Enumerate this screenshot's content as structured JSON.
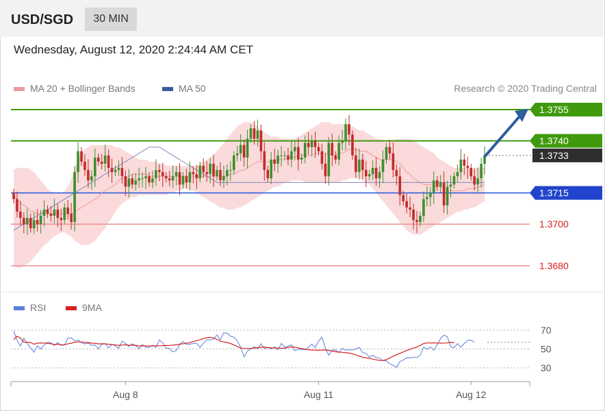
{
  "header": {
    "symbol": "USD/SGD",
    "timeframe": "30 MIN",
    "datetime": "Wednesday, August 12, 2020 2:24:44 AM CET"
  },
  "legend": {
    "bb_label": "MA 20 + Bollinger Bands",
    "ma50_label": "MA 50",
    "credit": "Research © 2020 Trading Central"
  },
  "rsi_legend": {
    "rsi_label": "RSI",
    "ma_label": "9MA"
  },
  "colors": {
    "bullish": "#3d8f2e",
    "bearish": "#c32b2b",
    "bollinger_fill": "#f9d4d4",
    "ma20": "#ef9a9a",
    "ma50": "#7d88c2",
    "resistance": "#3f9a0e",
    "support": "#2255dd",
    "support_minor": "#ef9090",
    "arrow": "#2c5fa0",
    "rsi": "#5a7fd6",
    "rsi_ma": "#d62020"
  },
  "chart_data": [
    {
      "type": "candlestick",
      "instrument": "USD/SGD",
      "timeframe": "30 MIN",
      "ylim": [
        1.3663,
        1.377
      ],
      "x_ticks": [
        {
          "label": "Aug 8",
          "index": 33
        },
        {
          "label": "Aug 11",
          "index": 90
        },
        {
          "label": "Aug 12",
          "index": 135
        }
      ],
      "levels": [
        {
          "value": 1.3755,
          "label": "1.3755",
          "kind": "resistance"
        },
        {
          "value": 1.374,
          "label": "1.3740",
          "kind": "resistance"
        },
        {
          "value": 1.3733,
          "label": "1.3733",
          "kind": "last_price"
        },
        {
          "value": 1.3715,
          "label": "1.3715",
          "kind": "pivot"
        },
        {
          "value": 1.37,
          "label": "1.3700",
          "kind": "support"
        },
        {
          "value": 1.368,
          "label": "1.3680",
          "kind": "support"
        }
      ],
      "close": [
        1.3712,
        1.3706,
        1.3703,
        1.37,
        1.3703,
        1.3698,
        1.3702,
        1.37,
        1.3704,
        1.3707,
        1.3705,
        1.3704,
        1.3707,
        1.3703,
        1.3702,
        1.3708,
        1.3705,
        1.3701,
        1.3725,
        1.3735,
        1.373,
        1.3726,
        1.3721,
        1.3723,
        1.3732,
        1.373,
        1.3729,
        1.3733,
        1.3727,
        1.3725,
        1.3726,
        1.3727,
        1.3723,
        1.3718,
        1.3722,
        1.3719,
        1.3721,
        1.3722,
        1.3722,
        1.3723,
        1.372,
        1.3722,
        1.3726,
        1.3725,
        1.3723,
        1.3722,
        1.3721,
        1.3723,
        1.3725,
        1.3719,
        1.3723,
        1.372,
        1.3725,
        1.3724,
        1.3722,
        1.3728,
        1.3725,
        1.3724,
        1.3729,
        1.3723,
        1.3726,
        1.3721,
        1.3723,
        1.3726,
        1.3726,
        1.3733,
        1.3734,
        1.3738,
        1.3732,
        1.3741,
        1.3746,
        1.3741,
        1.3745,
        1.3735,
        1.3726,
        1.3722,
        1.3731,
        1.3729,
        1.3733,
        1.3733,
        1.3733,
        1.3731,
        1.3735,
        1.3737,
        1.3731,
        1.3732,
        1.3739,
        1.3737,
        1.374,
        1.3737,
        1.3735,
        1.3729,
        1.3723,
        1.3739,
        1.3733,
        1.3731,
        1.3739,
        1.374,
        1.3748,
        1.3743,
        1.3733,
        1.3725,
        1.3731,
        1.3726,
        1.3723,
        1.3724,
        1.3727,
        1.3722,
        1.3725,
        1.3731,
        1.3737,
        1.3734,
        1.3726,
        1.3723,
        1.3714,
        1.3711,
        1.3708,
        1.3707,
        1.3702,
        1.3701,
        1.3704,
        1.3712,
        1.3713,
        1.3715,
        1.3721,
        1.3718,
        1.372,
        1.3709,
        1.3718,
        1.3719,
        1.3723,
        1.3725,
        1.3731,
        1.3728,
        1.3727,
        1.3723,
        1.3719,
        1.3722,
        1.3729,
        1.3733
      ],
      "ma20": [
        1.3714,
        1.3712,
        1.371,
        1.3709,
        1.3708,
        1.3706,
        1.3706,
        1.3705,
        1.3705,
        1.3705,
        1.3705,
        1.3705,
        1.3705,
        1.3705,
        1.3705,
        1.3705,
        1.3705,
        1.3705,
        1.3706,
        1.3707,
        1.3708,
        1.3709,
        1.371,
        1.3711,
        1.3712,
        1.3713,
        1.3715,
        1.3716,
        1.3717,
        1.3718,
        1.3719,
        1.3721,
        1.3722,
        1.3722,
        1.3723,
        1.3724,
        1.3724,
        1.3724,
        1.3724,
        1.3724,
        1.3723,
        1.3723,
        1.3723,
        1.3723,
        1.3723,
        1.3723,
        1.3723,
        1.3723,
        1.3723,
        1.3723,
        1.3723,
        1.3723,
        1.3723,
        1.3723,
        1.3723,
        1.3723,
        1.3723,
        1.3723,
        1.3723,
        1.3723,
        1.3723,
        1.3723,
        1.3723,
        1.3723,
        1.3724,
        1.3724,
        1.3725,
        1.3726,
        1.3726,
        1.3727,
        1.3728,
        1.3729,
        1.373,
        1.373,
        1.373,
        1.373,
        1.373,
        1.3731,
        1.3731,
        1.3731,
        1.3731,
        1.3731,
        1.3732,
        1.3732,
        1.3733,
        1.3733,
        1.3733,
        1.3733,
        1.3733,
        1.3734,
        1.3734,
        1.3734,
        1.3734,
        1.3734,
        1.3733,
        1.3733,
        1.3734,
        1.3734,
        1.3735,
        1.3736,
        1.3736,
        1.3736,
        1.3735,
        1.3735,
        1.3735,
        1.3734,
        1.3733,
        1.3732,
        1.3731,
        1.3731,
        1.3731,
        1.3731,
        1.3731,
        1.373,
        1.3729,
        1.3727,
        1.3725,
        1.3724,
        1.3722,
        1.3721,
        1.372,
        1.3719,
        1.3719,
        1.3719,
        1.3718,
        1.3718,
        1.3718,
        1.3717,
        1.3716,
        1.3716,
        1.3716,
        1.3716,
        1.3716,
        1.3716,
        1.3717,
        1.3717,
        1.3717,
        1.3718,
        1.3718,
        1.3719
      ],
      "bb_upper": [
        1.3726,
        1.3727,
        1.3727,
        1.3727,
        1.3727,
        1.3726,
        1.3725,
        1.3723,
        1.3721,
        1.3719,
        1.3717,
        1.3716,
        1.3715,
        1.3715,
        1.3715,
        1.3716,
        1.3718,
        1.3722,
        1.3727,
        1.3731,
        1.3734,
        1.3736,
        1.3737,
        1.3738,
        1.3738,
        1.3738,
        1.3738,
        1.3738,
        1.3738,
        1.3738,
        1.3737,
        1.3737,
        1.3736,
        1.3735,
        1.3734,
        1.3733,
        1.3732,
        1.3731,
        1.3731,
        1.3731,
        1.373,
        1.373,
        1.373,
        1.3729,
        1.3729,
        1.3728,
        1.3728,
        1.3728,
        1.3728,
        1.3728,
        1.3728,
        1.3728,
        1.3728,
        1.3728,
        1.3728,
        1.3729,
        1.373,
        1.3731,
        1.3732,
        1.3733,
        1.3735,
        1.3737,
        1.3739,
        1.3741,
        1.3743,
        1.3745,
        1.3747,
        1.3748,
        1.3749,
        1.3749,
        1.3749,
        1.3748,
        1.3747,
        1.3745,
        1.3744,
        1.3743,
        1.3742,
        1.3742,
        1.3742,
        1.3741,
        1.3741,
        1.3741,
        1.3741,
        1.3741,
        1.3742,
        1.3743,
        1.3744,
        1.3745,
        1.3746,
        1.3747,
        1.3748,
        1.3749,
        1.3749,
        1.3749,
        1.3748,
        1.3748,
        1.3748,
        1.3748,
        1.3748,
        1.3748,
        1.3747,
        1.3746,
        1.3745,
        1.3745,
        1.3744,
        1.3743,
        1.3742,
        1.3741,
        1.3741,
        1.374,
        1.374,
        1.374,
        1.374,
        1.3741,
        1.3741,
        1.3741,
        1.3741,
        1.3741,
        1.374,
        1.3739,
        1.3738,
        1.3737,
        1.3736,
        1.3735,
        1.3734,
        1.3732,
        1.3731,
        1.373,
        1.3729,
        1.3728,
        1.3727,
        1.3727,
        1.3727,
        1.3727,
        1.3727,
        1.3727,
        1.3727,
        1.3727,
        1.3727,
        1.3727
      ],
      "bb_lower": [
        1.368,
        1.3679,
        1.3679,
        1.368,
        1.3681,
        1.3682,
        1.3684,
        1.3686,
        1.3688,
        1.369,
        1.3691,
        1.3693,
        1.3694,
        1.3695,
        1.3696,
        1.3696,
        1.3695,
        1.3694,
        1.3692,
        1.3691,
        1.369,
        1.369,
        1.369,
        1.3691,
        1.3692,
        1.3694,
        1.3696,
        1.3698,
        1.3701,
        1.3703,
        1.3706,
        1.3708,
        1.371,
        1.3711,
        1.3712,
        1.3713,
        1.3713,
        1.3714,
        1.3714,
        1.3714,
        1.3714,
        1.3714,
        1.3714,
        1.3714,
        1.3714,
        1.3714,
        1.3715,
        1.3715,
        1.3716,
        1.3716,
        1.3717,
        1.3717,
        1.3716,
        1.3716,
        1.3715,
        1.3714,
        1.3713,
        1.3712,
        1.3711,
        1.371,
        1.3709,
        1.3708,
        1.3708,
        1.3707,
        1.3707,
        1.3707,
        1.3708,
        1.3708,
        1.3709,
        1.371,
        1.3711,
        1.3712,
        1.3713,
        1.3714,
        1.3715,
        1.3716,
        1.3717,
        1.3718,
        1.3718,
        1.3719,
        1.372,
        1.372,
        1.3721,
        1.3721,
        1.3721,
        1.3721,
        1.372,
        1.372,
        1.372,
        1.372,
        1.372,
        1.372,
        1.372,
        1.372,
        1.372,
        1.372,
        1.372,
        1.3721,
        1.3721,
        1.3722,
        1.3722,
        1.3722,
        1.3722,
        1.3721,
        1.372,
        1.3719,
        1.3717,
        1.3715,
        1.3713,
        1.3711,
        1.3709,
        1.3707,
        1.3705,
        1.3703,
        1.3701,
        1.3699,
        1.3697,
        1.3696,
        1.3695,
        1.3695,
        1.3695,
        1.3696,
        1.3697,
        1.3698,
        1.3699,
        1.37,
        1.3701,
        1.3702,
        1.3703,
        1.3704,
        1.3705,
        1.3706,
        1.3706,
        1.3707,
        1.3707,
        1.3708,
        1.3708,
        1.3709,
        1.371,
        1.3711
      ],
      "ma50": [
        1.3697,
        1.3698,
        1.3699,
        1.37,
        1.3701,
        1.3702,
        1.3703,
        1.3704,
        1.3705,
        1.3706,
        1.3707,
        1.3708,
        1.3709,
        1.371,
        1.3711,
        1.3712,
        1.3713,
        1.3714,
        1.3715,
        1.3716,
        1.3717,
        1.3718,
        1.3719,
        1.372,
        1.3721,
        1.3722,
        1.3723,
        1.3724,
        1.3725,
        1.3726,
        1.3727,
        1.3728,
        1.3729,
        1.373,
        1.3731,
        1.3732,
        1.3733,
        1.3734,
        1.3735,
        1.3736,
        1.3737,
        1.3737,
        1.3737,
        1.3737,
        1.3736,
        1.3735,
        1.3734,
        1.3733,
        1.3732,
        1.3731,
        1.373,
        1.3729,
        1.3728,
        1.3727,
        1.3726,
        1.3725,
        1.3724,
        1.3723,
        1.3722,
        1.3721,
        1.372,
        1.372,
        1.372,
        1.372,
        1.372,
        1.372,
        1.372,
        1.372,
        1.372,
        1.372,
        1.372,
        1.372,
        1.372,
        1.372,
        1.372,
        1.372,
        1.372,
        1.372,
        1.372,
        1.372,
        1.372,
        1.372,
        1.372,
        1.372,
        1.372,
        1.372,
        1.372,
        1.372,
        1.372,
        1.372,
        1.372,
        1.372,
        1.372,
        1.372,
        1.372,
        1.372,
        1.372,
        1.372,
        1.372,
        1.372,
        1.372,
        1.372,
        1.372,
        1.372,
        1.372,
        1.372,
        1.372,
        1.372,
        1.372,
        1.372,
        1.372,
        1.372,
        1.372,
        1.372,
        1.372,
        1.372,
        1.372,
        1.372,
        1.372,
        1.372,
        1.372,
        1.372,
        1.372,
        1.372,
        1.372,
        1.372,
        1.372,
        1.372,
        1.372,
        1.372,
        1.372,
        1.372,
        1.372,
        1.372,
        1.372,
        1.372,
        1.372,
        1.372,
        1.372,
        1.372
      ]
    },
    {
      "type": "line",
      "ylim": [
        20,
        80
      ],
      "y_ticks": [
        70,
        50,
        30
      ],
      "series": [
        {
          "name": "RSI",
          "values": [
            69.1,
            59.3,
            53.0,
            61.6,
            55.7,
            51.2,
            46.6,
            53.4,
            50.1,
            54.0,
            57.2,
            56.6,
            53.8,
            56.9,
            53.8,
            54.2,
            61.6,
            61.9,
            58.6,
            59.6,
            56.5,
            55.4,
            56.4,
            53.8,
            54.3,
            50.2,
            55.0,
            55.5,
            51.2,
            55.0,
            53.2,
            50.6,
            58.3,
            55.8,
            52.7,
            55.5,
            53.6,
            50.3,
            54.9,
            51.7,
            51.9,
            54.1,
            51.8,
            59.6,
            56.6,
            50.8,
            50.6,
            46.9,
            48.5,
            55.1,
            58.0,
            54.8,
            55.1,
            55.9,
            56.1,
            51.6,
            56.2,
            59.5,
            59.7,
            60.7,
            64.8,
            59.8,
            67.2,
            66.7,
            63.5,
            62.6,
            58.5,
            51.8,
            41.6,
            47.8,
            50.0,
            52.5,
            50.3,
            55.6,
            50.4,
            51.5,
            50.3,
            52.1,
            49.1,
            55.9,
            51.8,
            53.0,
            54.4,
            48.2,
            49.8,
            49.6,
            49.3,
            51.8,
            55.3,
            51.5,
            58.4,
            62.6,
            51.1,
            43.3,
            48.6,
            49.1,
            46.2,
            50.9,
            48.7,
            49.2,
            48.9,
            49.9,
            51.7,
            46.2,
            45.5,
            41.5,
            43.3,
            40.9,
            40.3,
            37.6,
            37.5,
            34.4,
            32.7,
            30.5,
            36.7,
            38.3,
            40.7,
            40.6,
            41.2,
            41.0,
            43.6,
            51.9,
            49.8,
            52.1,
            48.8,
            54.3,
            61.2,
            64.7,
            63.1,
            52.4,
            51.3,
            55.8,
            51.8,
            55.9,
            59.3,
            59.4,
            57.2
          ]
        },
        {
          "name": "9MA",
          "values": [
            60.0,
            63.5,
            61.5,
            57.3,
            57.3,
            56.8,
            55.1,
            56.2,
            56.5,
            56.3,
            56.1,
            55.5,
            54.7,
            55.1,
            54.6,
            54.5,
            55.5,
            56.2,
            57.2,
            57.6,
            57.5,
            57.0,
            56.8,
            56.2,
            56.1,
            55.4,
            55.6,
            55.5,
            55.0,
            54.8,
            54.3,
            53.9,
            54.2,
            54.4,
            54.1,
            54.0,
            53.9,
            53.3,
            53.3,
            53.3,
            53.2,
            53.1,
            53.4,
            53.5,
            53.6,
            53.7,
            53.8,
            54.2,
            54.4,
            55.1,
            55.6,
            56.1,
            56.8,
            57.9,
            58.8,
            59.9,
            61.1,
            62.0,
            62.5,
            61.8,
            60.2,
            58.3,
            57.5,
            56.9,
            55.8,
            54.3,
            52.7,
            51.0,
            50.6,
            50.5,
            50.6,
            51.0,
            51.4,
            51.8,
            52.1,
            51.6,
            51.2,
            51.2,
            51.0,
            50.9,
            50.8,
            51.7,
            52.2,
            52.1,
            51.2,
            50.5,
            49.8,
            49.2,
            48.9,
            48.8,
            48.6,
            48.8,
            49.0,
            48.6,
            47.9,
            47.1,
            46.7,
            46.5,
            46.1,
            45.6,
            44.8,
            43.6,
            42.5,
            41.2,
            40.6,
            40.1,
            39.3,
            38.5,
            37.9,
            37.8,
            38.7,
            40.5,
            42.3,
            44.0,
            45.4,
            46.9,
            48.5,
            49.7,
            51.0,
            52.1,
            53.8,
            55.8,
            56.4,
            56.4,
            56.5,
            56.4,
            56.2,
            56.3,
            56.4,
            57.3,
            56.6
          ]
        }
      ]
    }
  ]
}
